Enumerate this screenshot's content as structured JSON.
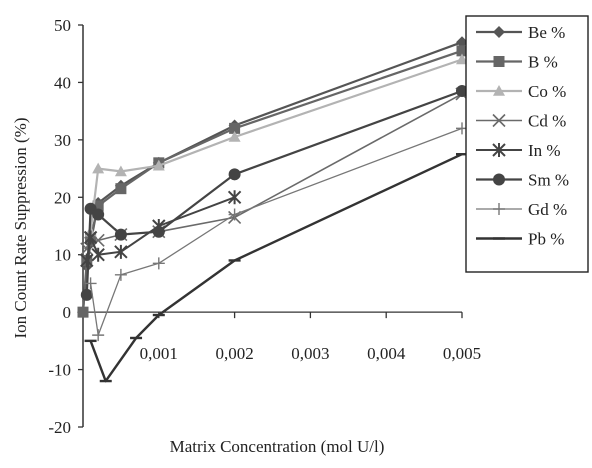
{
  "chart_data": {
    "type": "line",
    "xlabel": "Matrix Concentration (mol U/l)",
    "ylabel": "Ion Count Rate Suppression (%)",
    "xlim": [
      0,
      0.005
    ],
    "ylim": [
      -20,
      50
    ],
    "y_ticks": [
      -20,
      -10,
      0,
      10,
      20,
      30,
      40,
      50
    ],
    "y_tick_labels": [
      "-20",
      "-10",
      "0",
      "10",
      "20",
      "30",
      "40",
      "50"
    ],
    "x_ticks": [
      0.001,
      0.002,
      0.003,
      0.004,
      0.005
    ],
    "x_tick_labels": [
      "0,001",
      "0,002",
      "0,003",
      "0,004",
      "0,005"
    ],
    "x_tick_marks": [
      0,
      0.001,
      0.002,
      0.003,
      0.004,
      0.005
    ],
    "grid": false,
    "legend_position": "right",
    "series": [
      {
        "name": "Be %",
        "color": "#555555",
        "marker": "diamond",
        "width": 2.2,
        "x": [
          0,
          5e-05,
          0.0001,
          0.0002,
          0.0005,
          0.001,
          0.002,
          0.005
        ],
        "y": [
          0,
          8,
          12,
          19,
          22,
          26,
          32.5,
          47
        ]
      },
      {
        "name": "B %",
        "color": "#666666",
        "marker": "square",
        "width": 2.2,
        "x": [
          0,
          5e-05,
          0.0001,
          0.0002,
          0.0005,
          0.001,
          0.002,
          0.005
        ],
        "y": [
          0,
          9,
          13,
          18.5,
          21.5,
          26,
          32,
          45.5
        ]
      },
      {
        "name": "Co %",
        "color": "#b3b3b3",
        "marker": "triangle",
        "width": 2.2,
        "x": [
          0.0001,
          0.0002,
          0.0005,
          0.001,
          0.002,
          0.005
        ],
        "y": [
          14,
          25,
          24.5,
          25.5,
          30.5,
          44
        ]
      },
      {
        "name": "Cd %",
        "color": "#6a6a6a",
        "marker": "x",
        "width": 1.6,
        "x": [
          5e-05,
          0.0001,
          0.0002,
          0.0005,
          0.001,
          0.002,
          0.005
        ],
        "y": [
          11,
          12,
          12.5,
          13.5,
          14,
          16.5,
          38
        ]
      },
      {
        "name": "In %",
        "color": "#444444",
        "marker": "star",
        "width": 2.0,
        "x": [
          5e-05,
          0.0001,
          0.0002,
          0.0005,
          0.001,
          0.002
        ],
        "y": [
          9,
          13,
          10,
          10.5,
          15,
          20
        ]
      },
      {
        "name": "Sm %",
        "color": "#444444",
        "marker": "circle",
        "width": 2.2,
        "x": [
          5e-05,
          0.0001,
          0.0002,
          0.0005,
          0.001,
          0.002,
          0.005
        ],
        "y": [
          3,
          18,
          17,
          13.5,
          14,
          24,
          38.5
        ]
      },
      {
        "name": "Gd %",
        "color": "#777777",
        "marker": "plus",
        "width": 1.3,
        "x": [
          0.0001,
          0.0002,
          0.0005,
          0.001,
          0.002,
          0.005
        ],
        "y": [
          5,
          -4,
          6.5,
          8.5,
          17,
          32
        ]
      },
      {
        "name": "Pb %",
        "color": "#333333",
        "marker": "dash",
        "width": 2.4,
        "x": [
          0.0001,
          0.0003,
          0.0007,
          0.001,
          0.002,
          0.005
        ],
        "y": [
          -5,
          -12,
          -4.5,
          -0.5,
          9,
          27.5
        ]
      }
    ]
  }
}
